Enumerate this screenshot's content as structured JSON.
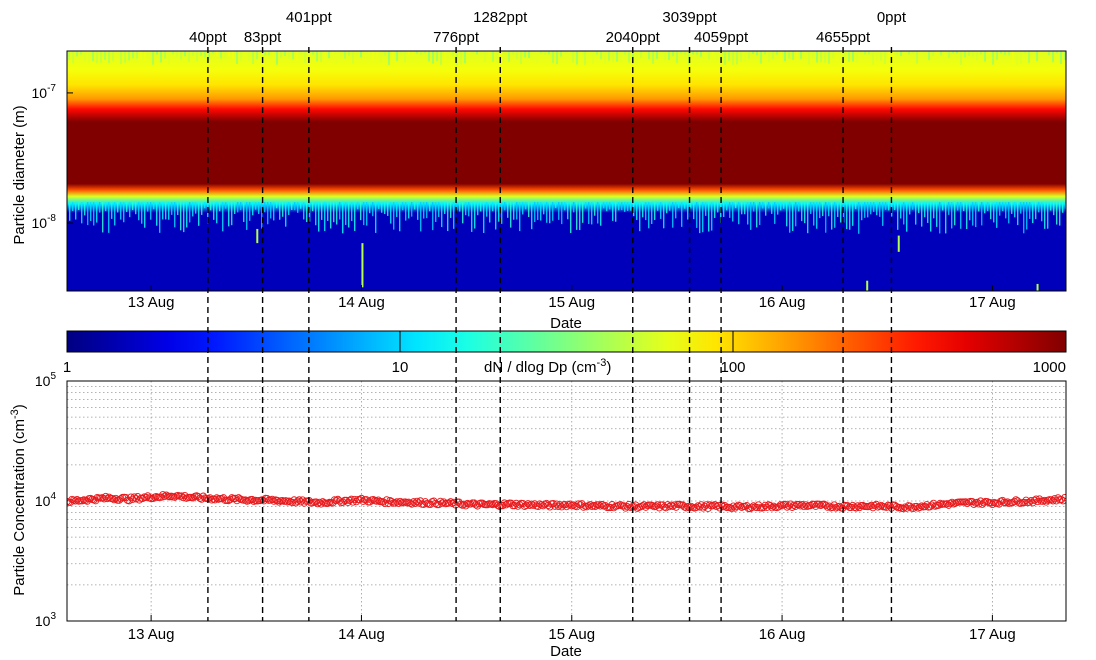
{
  "chart_data": [
    {
      "type": "heatmap",
      "title": "",
      "xlabel": "Date",
      "ylabel": "Particle diameter (m)",
      "x_ticks": [
        "13 Aug",
        "14 Aug",
        "15 Aug",
        "16 Aug",
        "17 Aug"
      ],
      "x_range_days": [
        12.6,
        17.35
      ],
      "y_scale": "log",
      "y_range_m": [
        3e-09,
        2.1e-07
      ],
      "y_ticks": [
        {
          "value": 1e-08,
          "mant": "10",
          "exp": "-8"
        },
        {
          "value": 1e-07,
          "mant": "10",
          "exp": "-7"
        }
      ],
      "intensity_profile": {
        "description_units": "dN / dlog Dp (cm-3) vs diameter (m)",
        "diameter_m": [
          3e-09,
          1.2e-08,
          1.4e-08,
          1.6e-08,
          1.8e-08,
          2e-08,
          6e-08,
          7.5e-08,
          9e-08,
          1.15e-07,
          1.5e-07,
          2.1e-07
        ],
        "dNdlogDp": [
          1.5,
          1.5,
          12,
          60,
          250,
          1000,
          1000,
          400,
          150,
          90,
          70,
          60
        ]
      },
      "colorbar": {
        "label_base": "dN / dlog Dp (cm",
        "label_exp": "-3",
        "label_close": ")",
        "scale": "log",
        "range": [
          1,
          1000
        ],
        "tick_labels": [
          "1",
          "10",
          "100",
          "1000"
        ],
        "colormap": "jet"
      },
      "events": [
        {
          "day": 13.27,
          "label": "40ppt"
        },
        {
          "day": 13.53,
          "label": "83ppt"
        },
        {
          "day": 13.75,
          "label": "401ppt"
        },
        {
          "day": 14.45,
          "label": "776ppt"
        },
        {
          "day": 14.66,
          "label": "1282ppt"
        },
        {
          "day": 15.29,
          "label": "2040ppt"
        },
        {
          "day": 15.56,
          "label": "3039ppt"
        },
        {
          "day": 15.71,
          "label": "4059ppt"
        },
        {
          "day": 16.29,
          "label": "4655ppt"
        },
        {
          "day": 16.52,
          "label": "0ppt"
        }
      ]
    },
    {
      "type": "scatter",
      "title": "",
      "xlabel": "Date",
      "ylabel_base": "Particle Concentration (cm",
      "ylabel_exp": "-3",
      "ylabel_close": ")",
      "x_ticks": [
        "13 Aug",
        "14 Aug",
        "15 Aug",
        "16 Aug",
        "17 Aug"
      ],
      "x_range_days": [
        12.6,
        17.35
      ],
      "y_scale": "log",
      "ylim": [
        1000,
        100000
      ],
      "y_ticks": [
        {
          "value": 1000,
          "mant": "10",
          "exp": "3"
        },
        {
          "value": 10000,
          "mant": "10",
          "exp": "4"
        },
        {
          "value": 100000,
          "mant": "10",
          "exp": "5"
        }
      ],
      "grid": true,
      "marker": "open-circle",
      "color": "#e8191c",
      "series": [
        {
          "x": [
            12.6,
            12.7,
            12.8,
            12.9,
            13.0,
            13.1,
            13.2,
            13.3,
            13.4,
            13.5,
            13.6,
            13.7,
            13.8,
            13.9,
            14.0,
            14.1,
            14.2,
            14.3,
            14.4,
            14.5,
            14.6,
            14.7,
            14.8,
            14.9,
            15.0,
            15.1,
            15.2,
            15.3,
            15.4,
            15.5,
            15.6,
            15.7,
            15.8,
            15.9,
            16.0,
            16.1,
            16.2,
            16.3,
            16.4,
            16.5,
            16.6,
            16.7,
            16.8,
            16.9,
            17.0,
            17.1,
            17.2,
            17.3,
            17.35
          ],
          "y": [
            9900,
            10300,
            10600,
            10400,
            10800,
            11100,
            10700,
            10500,
            10300,
            10200,
            10100,
            9900,
            9700,
            10000,
            10200,
            9900,
            9800,
            9700,
            9600,
            9400,
            9300,
            9400,
            9300,
            9200,
            9300,
            9100,
            9100,
            9000,
            9000,
            9100,
            9000,
            9000,
            8900,
            9000,
            9100,
            9200,
            9100,
            9000,
            9100,
            9000,
            8900,
            9200,
            9500,
            9700,
            9700,
            9900,
            10000,
            10300,
            10400
          ]
        }
      ]
    }
  ]
}
